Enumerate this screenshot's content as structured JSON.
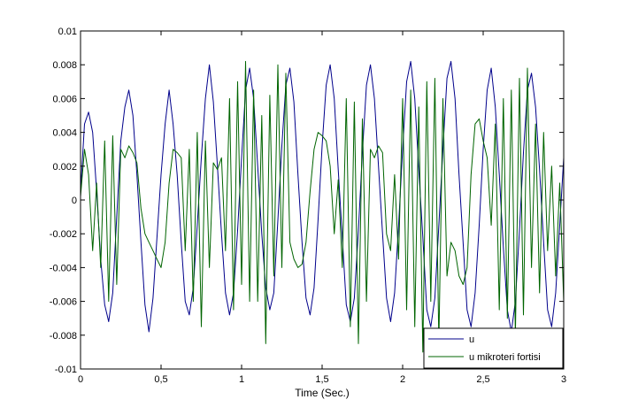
{
  "chart_data": {
    "type": "line",
    "title": "",
    "xlabel": "Time (Sec.)",
    "ylabel": "",
    "xlim": [
      0,
      3
    ],
    "ylim": [
      -0.01,
      0.01
    ],
    "grid": false,
    "legend_position": "bottom-right",
    "x_ticks": [
      0,
      0.5,
      1,
      1.5,
      2,
      2.5,
      3
    ],
    "x_tick_labels": [
      "0",
      "0,5",
      "1",
      "1,5",
      "2",
      "2,5",
      "3"
    ],
    "y_ticks": [
      -0.01,
      -0.008,
      -0.006,
      -0.004,
      -0.002,
      0,
      0.002,
      0.004,
      0.006,
      0.008,
      0.01
    ],
    "y_tick_labels": [
      "-0.01",
      "-0.008",
      "-0.006",
      "-0.004",
      "-0.002",
      "0",
      "0.002",
      "0.004",
      "0.006",
      "0.008",
      "0.01"
    ],
    "series": [
      {
        "name": "u",
        "color": "#00008b",
        "x": [
          0,
          0.025,
          0.05,
          0.075,
          0.1,
          0.125,
          0.15,
          0.175,
          0.2,
          0.225,
          0.25,
          0.275,
          0.3,
          0.325,
          0.35,
          0.375,
          0.4,
          0.425,
          0.45,
          0.475,
          0.5,
          0.525,
          0.55,
          0.575,
          0.6,
          0.625,
          0.65,
          0.675,
          0.7,
          0.725,
          0.75,
          0.775,
          0.8,
          0.825,
          0.85,
          0.875,
          0.9,
          0.925,
          0.95,
          0.975,
          1,
          1.025,
          1.05,
          1.075,
          1.1,
          1.125,
          1.15,
          1.175,
          1.2,
          1.225,
          1.25,
          1.275,
          1.3,
          1.325,
          1.35,
          1.375,
          1.4,
          1.425,
          1.45,
          1.475,
          1.5,
          1.525,
          1.55,
          1.575,
          1.6,
          1.625,
          1.65,
          1.675,
          1.7,
          1.725,
          1.75,
          1.775,
          1.8,
          1.825,
          1.85,
          1.875,
          1.9,
          1.925,
          1.95,
          1.975,
          2,
          2.025,
          2.05,
          2.075,
          2.1,
          2.125,
          2.15,
          2.175,
          2.2,
          2.225,
          2.25,
          2.275,
          2.3,
          2.325,
          2.35,
          2.375,
          2.4,
          2.425,
          2.45,
          2.475,
          2.5,
          2.525,
          2.55,
          2.575,
          2.6,
          2.625,
          2.65,
          2.675,
          2.7,
          2.725,
          2.75,
          2.775,
          2.8,
          2.825,
          2.85,
          2.875,
          2.9,
          2.925,
          2.95,
          2.975,
          3
        ],
        "values": [
          0.0005,
          0.0045,
          0.0052,
          0.004,
          0.0005,
          -0.0035,
          -0.0062,
          -0.0072,
          -0.0055,
          -0.001,
          0.0035,
          0.0055,
          0.0065,
          0.005,
          0.0015,
          -0.0025,
          -0.0062,
          -0.0078,
          -0.0058,
          -0.0022,
          0.0015,
          0.0045,
          0.0065,
          0.0045,
          0.0015,
          -0.0025,
          -0.006,
          -0.0068,
          -0.0052,
          -0.0015,
          0.0025,
          0.006,
          0.008,
          0.0058,
          0.002,
          -0.002,
          -0.0055,
          -0.0068,
          -0.0055,
          -0.0018,
          0.0025,
          0.0065,
          0.0078,
          0.006,
          0.002,
          -0.002,
          -0.0052,
          -0.0065,
          -0.0055,
          -0.0012,
          0.0032,
          0.0068,
          0.0078,
          0.0058,
          0.0015,
          -0.0025,
          -0.0058,
          -0.0068,
          -0.0052,
          -0.0012,
          0.0032,
          0.0068,
          0.008,
          0.006,
          0.0018,
          -0.0022,
          -0.0062,
          -0.0072,
          -0.0058,
          -0.0018,
          0.0028,
          0.0068,
          0.008,
          0.006,
          0.002,
          -0.002,
          -0.0058,
          -0.0072,
          -0.0055,
          -0.0015,
          0.003,
          0.007,
          0.0082,
          0.006,
          0.0018,
          -0.0022,
          -0.0065,
          -0.0075,
          -0.0058,
          -0.0015,
          0.003,
          0.0072,
          0.0082,
          0.006,
          0.0015,
          -0.0025,
          -0.0065,
          -0.0075,
          -0.0055,
          -0.0015,
          0.003,
          0.0065,
          0.0078,
          0.0055,
          0.0015,
          -0.0028,
          -0.0065,
          -0.0078,
          -0.006,
          -0.0018,
          0.0028,
          0.0065,
          0.0075,
          0.0055,
          0.0018,
          -0.0025,
          -0.0065,
          -0.0075,
          -0.0055,
          -0.0015,
          0.0025
        ]
      },
      {
        "name": "u mikroteri fortisi",
        "color": "#006400",
        "x": [
          0,
          0.025,
          0.05,
          0.075,
          0.1,
          0.125,
          0.15,
          0.175,
          0.2,
          0.225,
          0.25,
          0.275,
          0.3,
          0.325,
          0.35,
          0.375,
          0.4,
          0.425,
          0.45,
          0.475,
          0.5,
          0.525,
          0.55,
          0.575,
          0.6,
          0.625,
          0.65,
          0.675,
          0.7,
          0.725,
          0.75,
          0.775,
          0.8,
          0.825,
          0.85,
          0.875,
          0.9,
          0.925,
          0.95,
          0.975,
          1,
          1.025,
          1.05,
          1.075,
          1.1,
          1.125,
          1.15,
          1.175,
          1.2,
          1.225,
          1.25,
          1.275,
          1.3,
          1.325,
          1.35,
          1.375,
          1.4,
          1.425,
          1.45,
          1.475,
          1.5,
          1.525,
          1.55,
          1.575,
          1.6,
          1.625,
          1.65,
          1.675,
          1.7,
          1.725,
          1.75,
          1.775,
          1.8,
          1.825,
          1.85,
          1.875,
          1.9,
          1.925,
          1.95,
          1.975,
          2,
          2.025,
          2.05,
          2.075,
          2.1,
          2.125,
          2.15,
          2.175,
          2.2,
          2.225,
          2.25,
          2.275,
          2.3,
          2.325,
          2.35,
          2.375,
          2.4,
          2.425,
          2.45,
          2.475,
          2.5,
          2.525,
          2.55,
          2.575,
          2.6,
          2.625,
          2.65,
          2.675,
          2.7,
          2.725,
          2.75,
          2.775,
          2.8,
          2.825,
          2.85,
          2.875,
          2.9,
          2.925,
          2.95,
          2.975,
          3
        ],
        "values": [
          0.0002,
          0.003,
          0.0015,
          -0.003,
          0.001,
          -0.004,
          0.0035,
          -0.006,
          0.0038,
          -0.005,
          0.003,
          0.0025,
          0.0032,
          0.0028,
          0.0022,
          -0.0005,
          -0.002,
          -0.0025,
          -0.003,
          -0.0035,
          -0.004,
          -0.0025,
          0.001,
          0.003,
          0.0028,
          0.0025,
          -0.003,
          0.003,
          -0.006,
          0.004,
          -0.0075,
          0.0035,
          -0.004,
          0.0022,
          0.0018,
          0.0025,
          -0.003,
          0.006,
          -0.0065,
          0.007,
          -0.005,
          0.0082,
          -0.006,
          0.0065,
          -0.006,
          0.005,
          -0.0085,
          0.0062,
          -0.0045,
          0.008,
          -0.004,
          0.0075,
          -0.0025,
          -0.0035,
          -0.004,
          -0.0038,
          -0.0025,
          0.0005,
          0.003,
          0.004,
          0.0038,
          0.0035,
          0.002,
          -0.002,
          0.0012,
          -0.004,
          0.006,
          -0.0075,
          0.0058,
          -0.0085,
          0.0048,
          -0.006,
          0.003,
          0.0025,
          0.0032,
          0.0028,
          -0.002,
          -0.003,
          0.0015,
          -0.0035,
          0.006,
          -0.0065,
          0.0065,
          -0.0075,
          0.0055,
          -0.009,
          0.007,
          -0.006,
          0.0072,
          -0.0085,
          0.006,
          -0.0045,
          -0.0025,
          -0.003,
          -0.0045,
          -0.005,
          -0.004,
          0.0015,
          0.0045,
          0.0048,
          0.0035,
          0.0025,
          -0.0015,
          0.0045,
          -0.0065,
          0.006,
          -0.007,
          0.0065,
          -0.008,
          0.0072,
          -0.0068,
          0.0078,
          -0.004,
          0.0045,
          -0.0055,
          0.004,
          -0.003,
          0.002,
          -0.0045,
          0.001,
          -0.006
        ]
      }
    ]
  }
}
